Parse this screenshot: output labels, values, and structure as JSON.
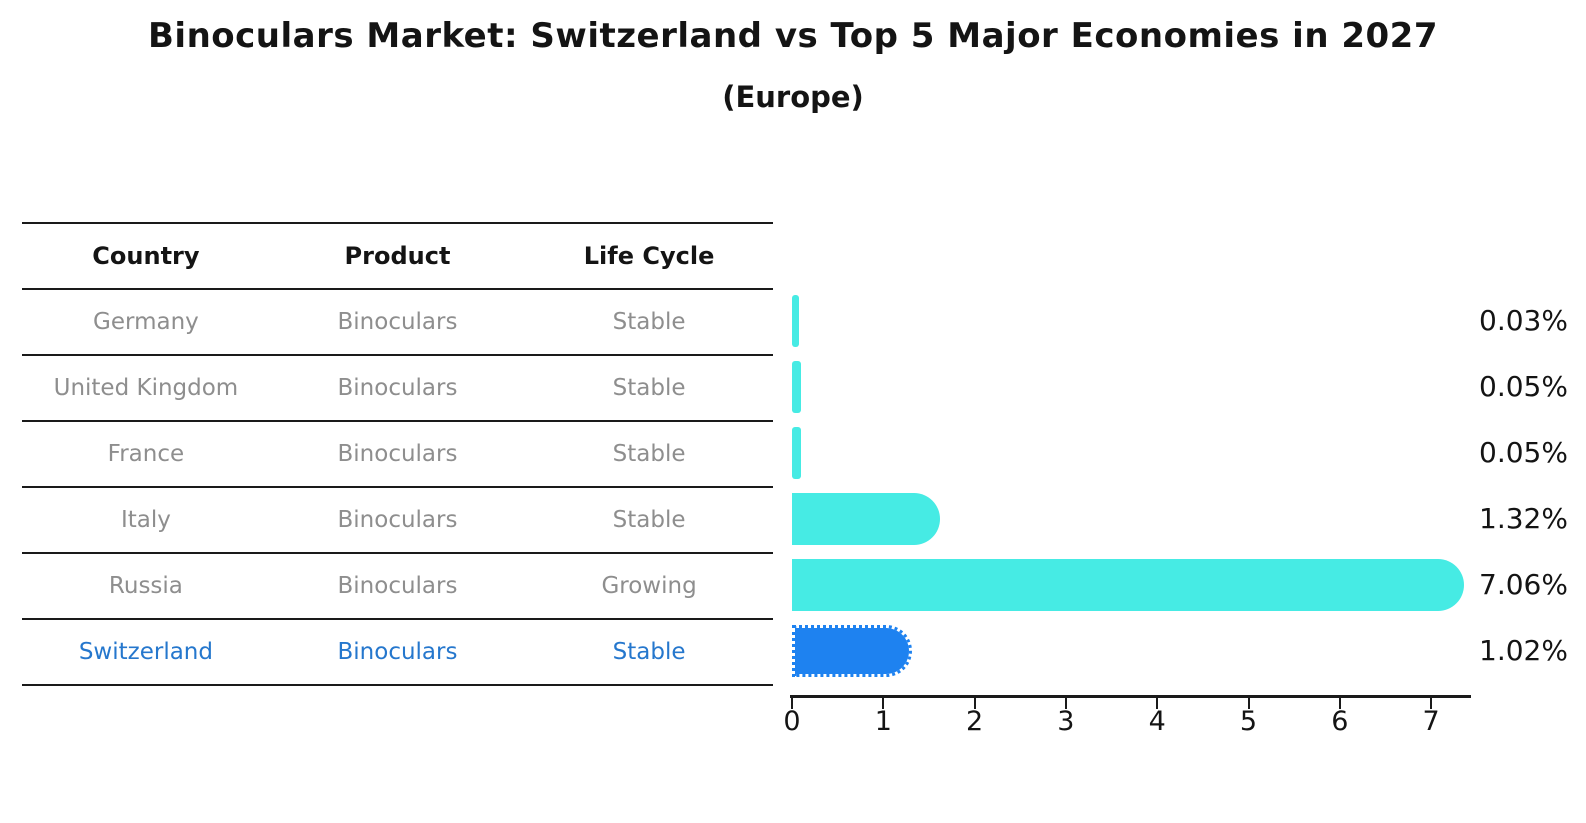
{
  "page": {
    "title": "Binoculars Market: Switzerland vs Top 5 Major Economies in 2027",
    "subtitle": "(Europe)"
  },
  "table": {
    "headers": [
      "Country",
      "Product",
      "Life Cycle"
    ],
    "rows": [
      {
        "country": "Germany",
        "product": "Binoculars",
        "life_cycle": "Stable",
        "highlight": false
      },
      {
        "country": "United Kingdom",
        "product": "Binoculars",
        "life_cycle": "Stable",
        "highlight": false
      },
      {
        "country": "France",
        "product": "Binoculars",
        "life_cycle": "Stable",
        "highlight": false
      },
      {
        "country": "Italy",
        "product": "Binoculars",
        "life_cycle": "Stable",
        "highlight": false
      },
      {
        "country": "Russia",
        "product": "Binoculars",
        "life_cycle": "Growing",
        "highlight": false
      },
      {
        "country": "Switzerland",
        "product": "Binoculars",
        "life_cycle": "Stable",
        "highlight": true
      }
    ]
  },
  "chart_data": {
    "type": "bar",
    "orientation": "horizontal",
    "title": "Binoculars Market: Switzerland vs Top 5 Major Economies in 2027",
    "subtitle": "(Europe)",
    "categories": [
      "Germany",
      "United Kingdom",
      "France",
      "Italy",
      "Russia",
      "Switzerland"
    ],
    "values": [
      0.03,
      0.05,
      0.05,
      1.32,
      7.06,
      1.02
    ],
    "value_labels": [
      "0.03%",
      "0.05%",
      "0.05%",
      "1.32%",
      "7.06%",
      "1.02%"
    ],
    "unit": "percent",
    "xlabel": "",
    "ylabel": "",
    "x_ticks": [
      "0",
      "1",
      "2",
      "3",
      "4",
      "5",
      "6",
      "7"
    ],
    "xlim": [
      0,
      7.42
    ],
    "grid": false,
    "legend": "none",
    "highlight_index": 5,
    "highlight_style": "dotted-border"
  },
  "colors": {
    "bar_default": "#46EBE4",
    "bar_highlight": "#1E82F0",
    "highlight_text": "#2577cd",
    "row_text": "#8e8e8e",
    "axis": "#1a1a1a"
  }
}
